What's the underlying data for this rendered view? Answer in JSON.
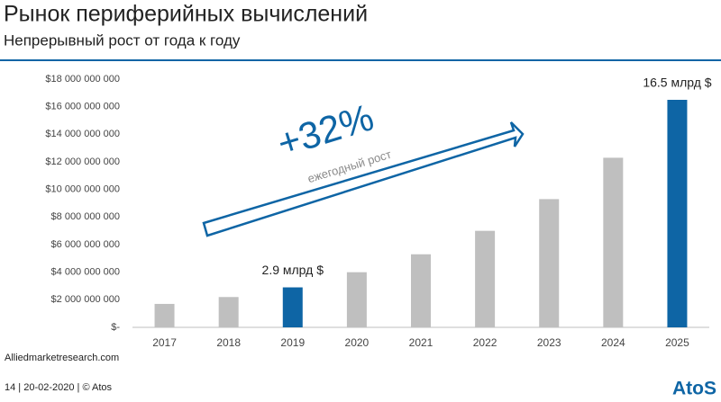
{
  "slide": {
    "title": "Рынок периферийных вычислений",
    "subtitle": "Непрерывный рост от года к году",
    "source": "Alliedmarketresearch.com",
    "footer": "14  | 20-02-2020 | © Atos",
    "logo": "AtoS"
  },
  "chart_data": {
    "type": "bar",
    "categories": [
      "2017",
      "2018",
      "2019",
      "2020",
      "2021",
      "2022",
      "2023",
      "2024",
      "2025"
    ],
    "values": [
      1700000000,
      2200000000,
      2900000000,
      4000000000,
      5300000000,
      7000000000,
      9300000000,
      12300000000,
      16500000000
    ],
    "value_labels": [
      null,
      null,
      "2.9 млрд $",
      null,
      null,
      null,
      null,
      null,
      "16.5 млрд $"
    ],
    "colors": [
      "#bfbfbf",
      "#bfbfbf",
      "#0e65a5",
      "#bfbfbf",
      "#bfbfbf",
      "#bfbfbf",
      "#bfbfbf",
      "#bfbfbf",
      "#0e65a5"
    ],
    "ylim": [
      0,
      18000000000
    ],
    "yticks": [
      {
        "value": 0,
        "label": "$-"
      },
      {
        "value": 2000000000,
        "label": "$2 000 000 000"
      },
      {
        "value": 4000000000,
        "label": "$4 000 000 000"
      },
      {
        "value": 6000000000,
        "label": "$6 000 000 000"
      },
      {
        "value": 8000000000,
        "label": "$8 000 000 000"
      },
      {
        "value": 10000000000,
        "label": "$10 000 000 000"
      },
      {
        "value": 12000000000,
        "label": "$12 000 000 000"
      },
      {
        "value": 14000000000,
        "label": "$14 000 000 000"
      },
      {
        "value": 16000000000,
        "label": "$16 000 000 000"
      },
      {
        "value": 18000000000,
        "label": "$18 000 000 000"
      }
    ],
    "grid": false,
    "annotations": [
      "+32%",
      "ежегодный рост"
    ]
  }
}
